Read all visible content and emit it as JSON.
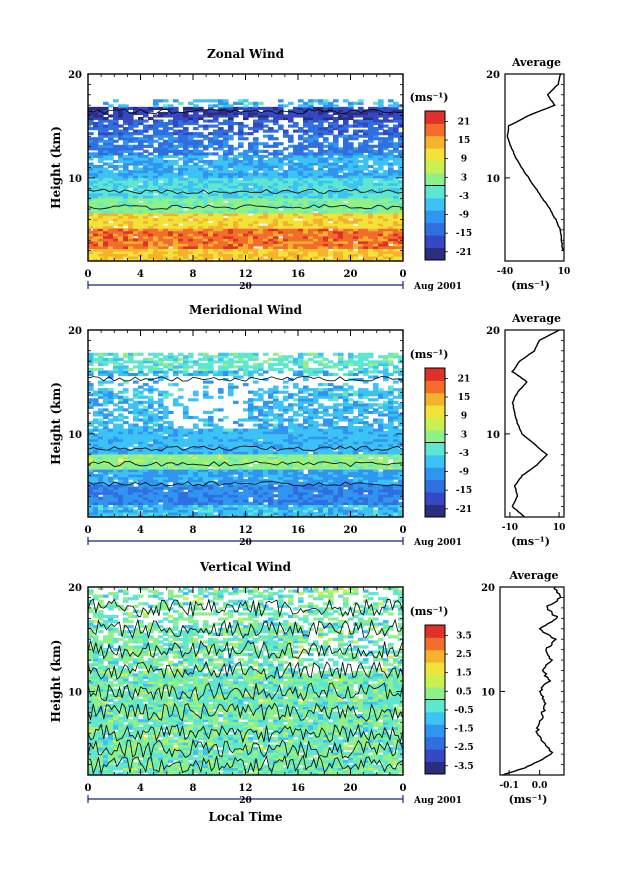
{
  "chart_data": [
    {
      "type": "heatmap",
      "title": "Zonal Wind",
      "ylabel": "Height (km)",
      "yticks": [
        "20",
        "10"
      ],
      "ylim": [
        2,
        20
      ],
      "xticks": [
        "0",
        "4",
        "8",
        "12",
        "16",
        "20",
        "0"
      ],
      "date_marker": "20",
      "date_label": "Aug 2001",
      "unit_label": "(ms⁻¹)",
      "colorbar_ticks": [
        "21",
        "15",
        "9",
        "3",
        "-3",
        "-9",
        "-15",
        "-21"
      ],
      "colorbar_range": [
        -24,
        24
      ],
      "profile": {
        "title": "Average",
        "xticks": [
          "-40",
          "10"
        ],
        "xlim": [
          -40,
          10
        ],
        "yticks": [
          "20",
          "10"
        ],
        "xlabel": "(ms⁻¹)",
        "heights": [
          3,
          4,
          5,
          6,
          7,
          8,
          9,
          10,
          11,
          12,
          13,
          14,
          15,
          16,
          17,
          18,
          19,
          20
        ],
        "values": [
          9,
          8,
          7,
          3,
          -2,
          -8,
          -14,
          -20,
          -26,
          -31,
          -35,
          -38,
          -37,
          -20,
          2,
          -4,
          5,
          7
        ]
      }
    },
    {
      "type": "heatmap",
      "title": "Meridional Wind",
      "ylabel": "Height (km)",
      "yticks": [
        "20",
        "10"
      ],
      "ylim": [
        2,
        20
      ],
      "xticks": [
        "0",
        "4",
        "8",
        "12",
        "16",
        "20",
        "0"
      ],
      "date_marker": "20",
      "date_label": "Aug 2001",
      "unit_label": "(ms⁻¹)",
      "colorbar_ticks": [
        "21",
        "15",
        "9",
        "3",
        "-3",
        "-9",
        "-15",
        "-21"
      ],
      "colorbar_range": [
        -24,
        24
      ],
      "profile": {
        "title": "Average",
        "xticks": [
          "-10",
          "10"
        ],
        "xlim": [
          -12,
          12
        ],
        "yticks": [
          "20",
          "10"
        ],
        "xlabel": "(ms⁻¹)",
        "heights": [
          2,
          3,
          4,
          5,
          6,
          7,
          8,
          9,
          10,
          11,
          12,
          13,
          14,
          15,
          16,
          17,
          18,
          19,
          20
        ],
        "values": [
          -4,
          -9,
          -7,
          -8,
          -5,
          1,
          5,
          0,
          -5,
          -7,
          -8,
          -9,
          -7,
          -3,
          -9,
          -6,
          0,
          2,
          10
        ]
      }
    },
    {
      "type": "heatmap",
      "title": "Vertical Wind",
      "ylabel": "Height (km)",
      "xlabel": "Local Time",
      "yticks": [
        "20",
        "10"
      ],
      "ylim": [
        2,
        20
      ],
      "xticks": [
        "0",
        "4",
        "8",
        "12",
        "16",
        "20",
        "0"
      ],
      "date_marker": "20",
      "date_label": "Aug 2001",
      "unit_label": "(ms⁻¹)",
      "colorbar_ticks": [
        "3.5",
        "2.5",
        "1.5",
        "0.5",
        "-0.5",
        "-1.5",
        "-2.5",
        "-3.5"
      ],
      "colorbar_range": [
        -4,
        4
      ],
      "profile": {
        "title": "Average",
        "xticks": [
          "-0.1",
          "0.0"
        ],
        "xlim": [
          -0.13,
          0.08
        ],
        "yticks": [
          "20",
          "10"
        ],
        "xlabel": "(ms⁻¹)",
        "heights": [
          2,
          3,
          4,
          5,
          6,
          7,
          8,
          9,
          10,
          11,
          12,
          13,
          14,
          15,
          16,
          17,
          18,
          19,
          20
        ],
        "values": [
          -0.12,
          -0.02,
          0.04,
          0.02,
          -0.01,
          0.0,
          0.01,
          0.02,
          0.0,
          0.03,
          0.01,
          0.04,
          0.02,
          0.05,
          0.0,
          0.06,
          0.02,
          0.07,
          0.05
        ]
      }
    }
  ]
}
